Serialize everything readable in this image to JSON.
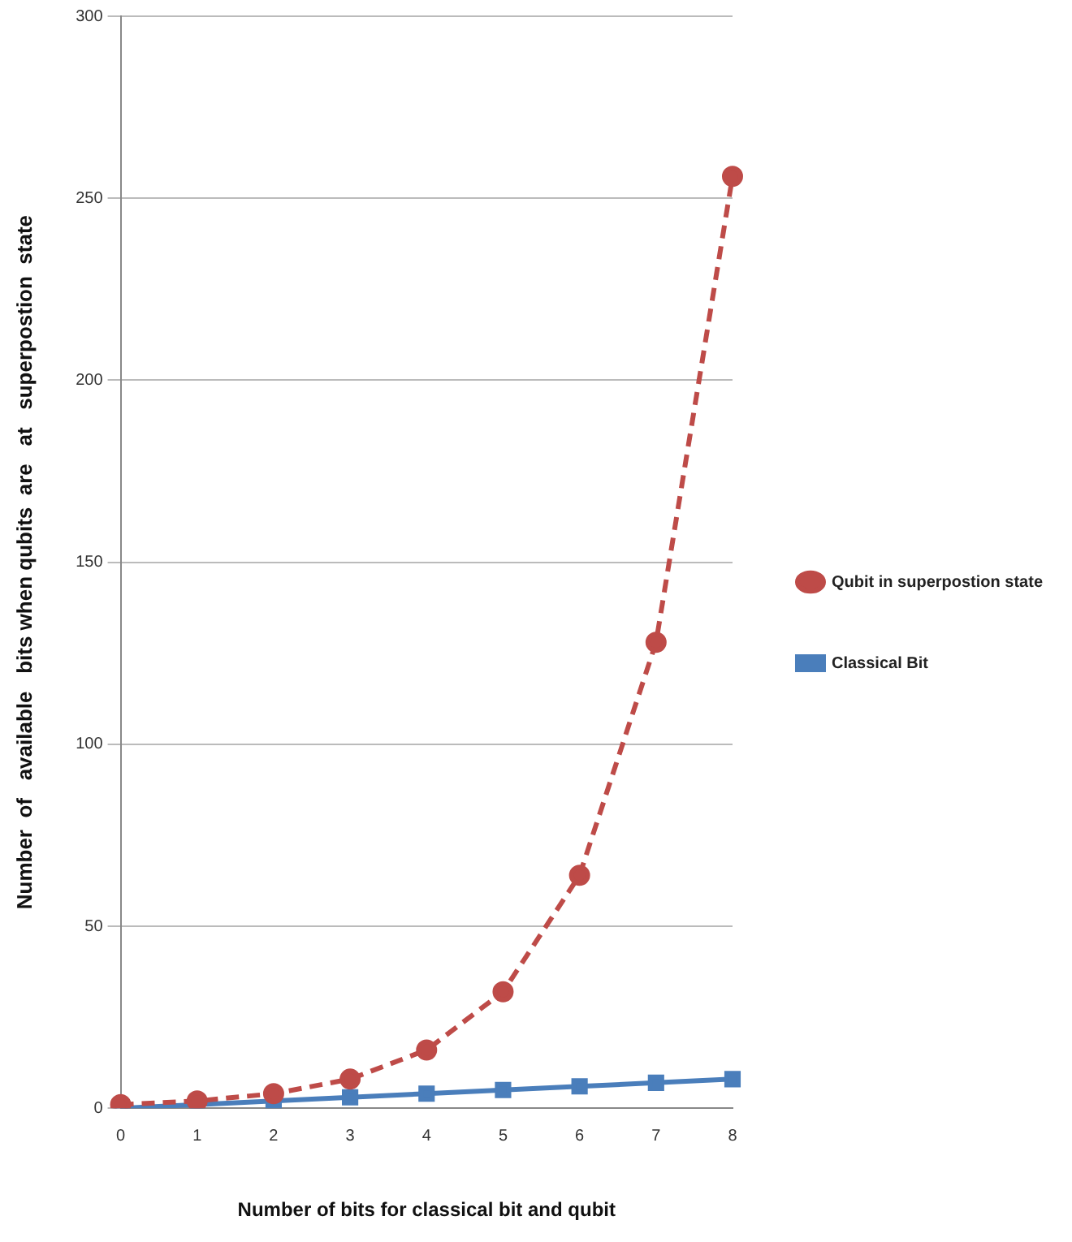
{
  "chart_data": {
    "type": "line",
    "xlabel": "Number of bits for classical bit and qubit",
    "ylabel": "Number  of   available   bits when qubits  are   at   superpostion  state",
    "categories": [
      "0",
      "1",
      "2",
      "3",
      "4",
      "5",
      "6",
      "7",
      "8"
    ],
    "series": [
      {
        "name": "Classical Bit",
        "color": "#4a7ebb",
        "values": [
          0,
          1,
          2,
          3,
          4,
          5,
          6,
          7,
          8
        ],
        "marker": "square",
        "line_style": "solid"
      },
      {
        "name": "Qubit in superpostion state",
        "color": "#be4b48",
        "values": [
          1,
          2,
          4,
          8,
          16,
          32,
          64,
          128,
          256
        ],
        "marker": "circle",
        "line_style": "dashed"
      }
    ],
    "ylim": [
      0,
      300
    ],
    "yticks": [
      0,
      50,
      100,
      150,
      200,
      250,
      300
    ],
    "grid": "y",
    "legend": "right"
  }
}
